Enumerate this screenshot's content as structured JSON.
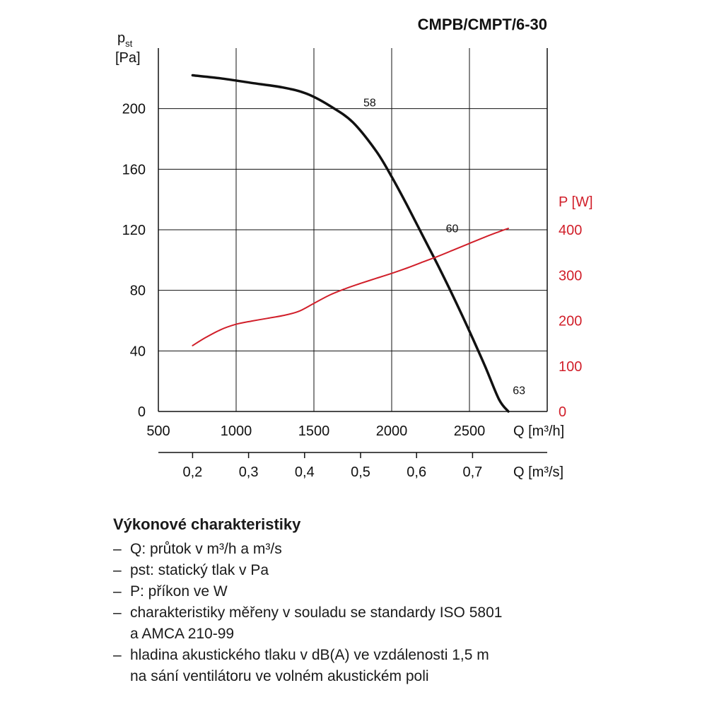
{
  "chart_data": {
    "type": "line",
    "title": "CMPB/CMPT/6-30",
    "ylabel_main": "p",
    "ylabel_sub": "st",
    "ylabel_unit": "[Pa]",
    "ylabel_right": "P [W]",
    "xlabel": "Q [m³/h]",
    "xlabel2": "Q [m³/s]",
    "xlim": [
      500,
      3000
    ],
    "ylim": [
      0,
      240
    ],
    "ylim_right": [
      0,
      400
    ],
    "x_ticks": [
      "500",
      "1000",
      "1500",
      "2000",
      "2500"
    ],
    "y_ticks": [
      "0",
      "40",
      "80",
      "120",
      "160",
      "200"
    ],
    "y_ticks_right": [
      "0",
      "100",
      "200",
      "300",
      "400"
    ],
    "x2_ticks": [
      "0,2",
      "0,3",
      "0,4",
      "0,5",
      "0,6",
      "0,7"
    ],
    "x2_tick_values_m3h": [
      720,
      1080,
      1440,
      1800,
      2160,
      2520
    ],
    "grid": true,
    "series": [
      {
        "axis": "left",
        "color": "#111111",
        "x": [
          720,
          900,
          1100,
          1300,
          1450,
          1600,
          1750,
          1900,
          2000,
          2100,
          2200,
          2300,
          2400,
          2500,
          2600,
          2690,
          2750
        ],
        "y": [
          222,
          220,
          217,
          214,
          210,
          202,
          191,
          172,
          155,
          136,
          116,
          96,
          75,
          53,
          30,
          8,
          0
        ]
      },
      {
        "axis": "right",
        "color": "#d11f2a",
        "x": [
          720,
          800,
          900,
          1000,
          1100,
          1200,
          1300,
          1400,
          1500,
          1600,
          1700,
          1800,
          1900,
          2000,
          2100,
          2200,
          2300,
          2400,
          2500,
          2600,
          2700,
          2750
        ],
        "y": [
          145,
          162,
          180,
          192,
          199,
          205,
          211,
          220,
          238,
          256,
          270,
          282,
          293,
          304,
          316,
          329,
          342,
          356,
          370,
          384,
          397,
          403
        ]
      }
    ],
    "annotations": [
      {
        "text": "58",
        "x": 1800,
        "y": 194
      },
      {
        "text": "60",
        "x": 2330,
        "y": 111
      },
      {
        "text": "63",
        "x": 2760,
        "y": 4
      }
    ]
  },
  "description": {
    "heading": "Výkonové charakteristiky",
    "dash": "–",
    "items": [
      {
        "line1": "Q: průtok v m³/h a m³/s"
      },
      {
        "line1": "pst: statický tlak v Pa"
      },
      {
        "line1": "P: příkon ve W"
      },
      {
        "line1": "charakteristiky měřeny v souladu se standardy ISO 5801",
        "line2": "a AMCA 210-99"
      },
      {
        "line1": "hladina akustického tlaku v dB(A) ve vzdálenosti 1,5 m",
        "line2": "na sání ventilátoru ve volném akustickém poli"
      }
    ]
  }
}
